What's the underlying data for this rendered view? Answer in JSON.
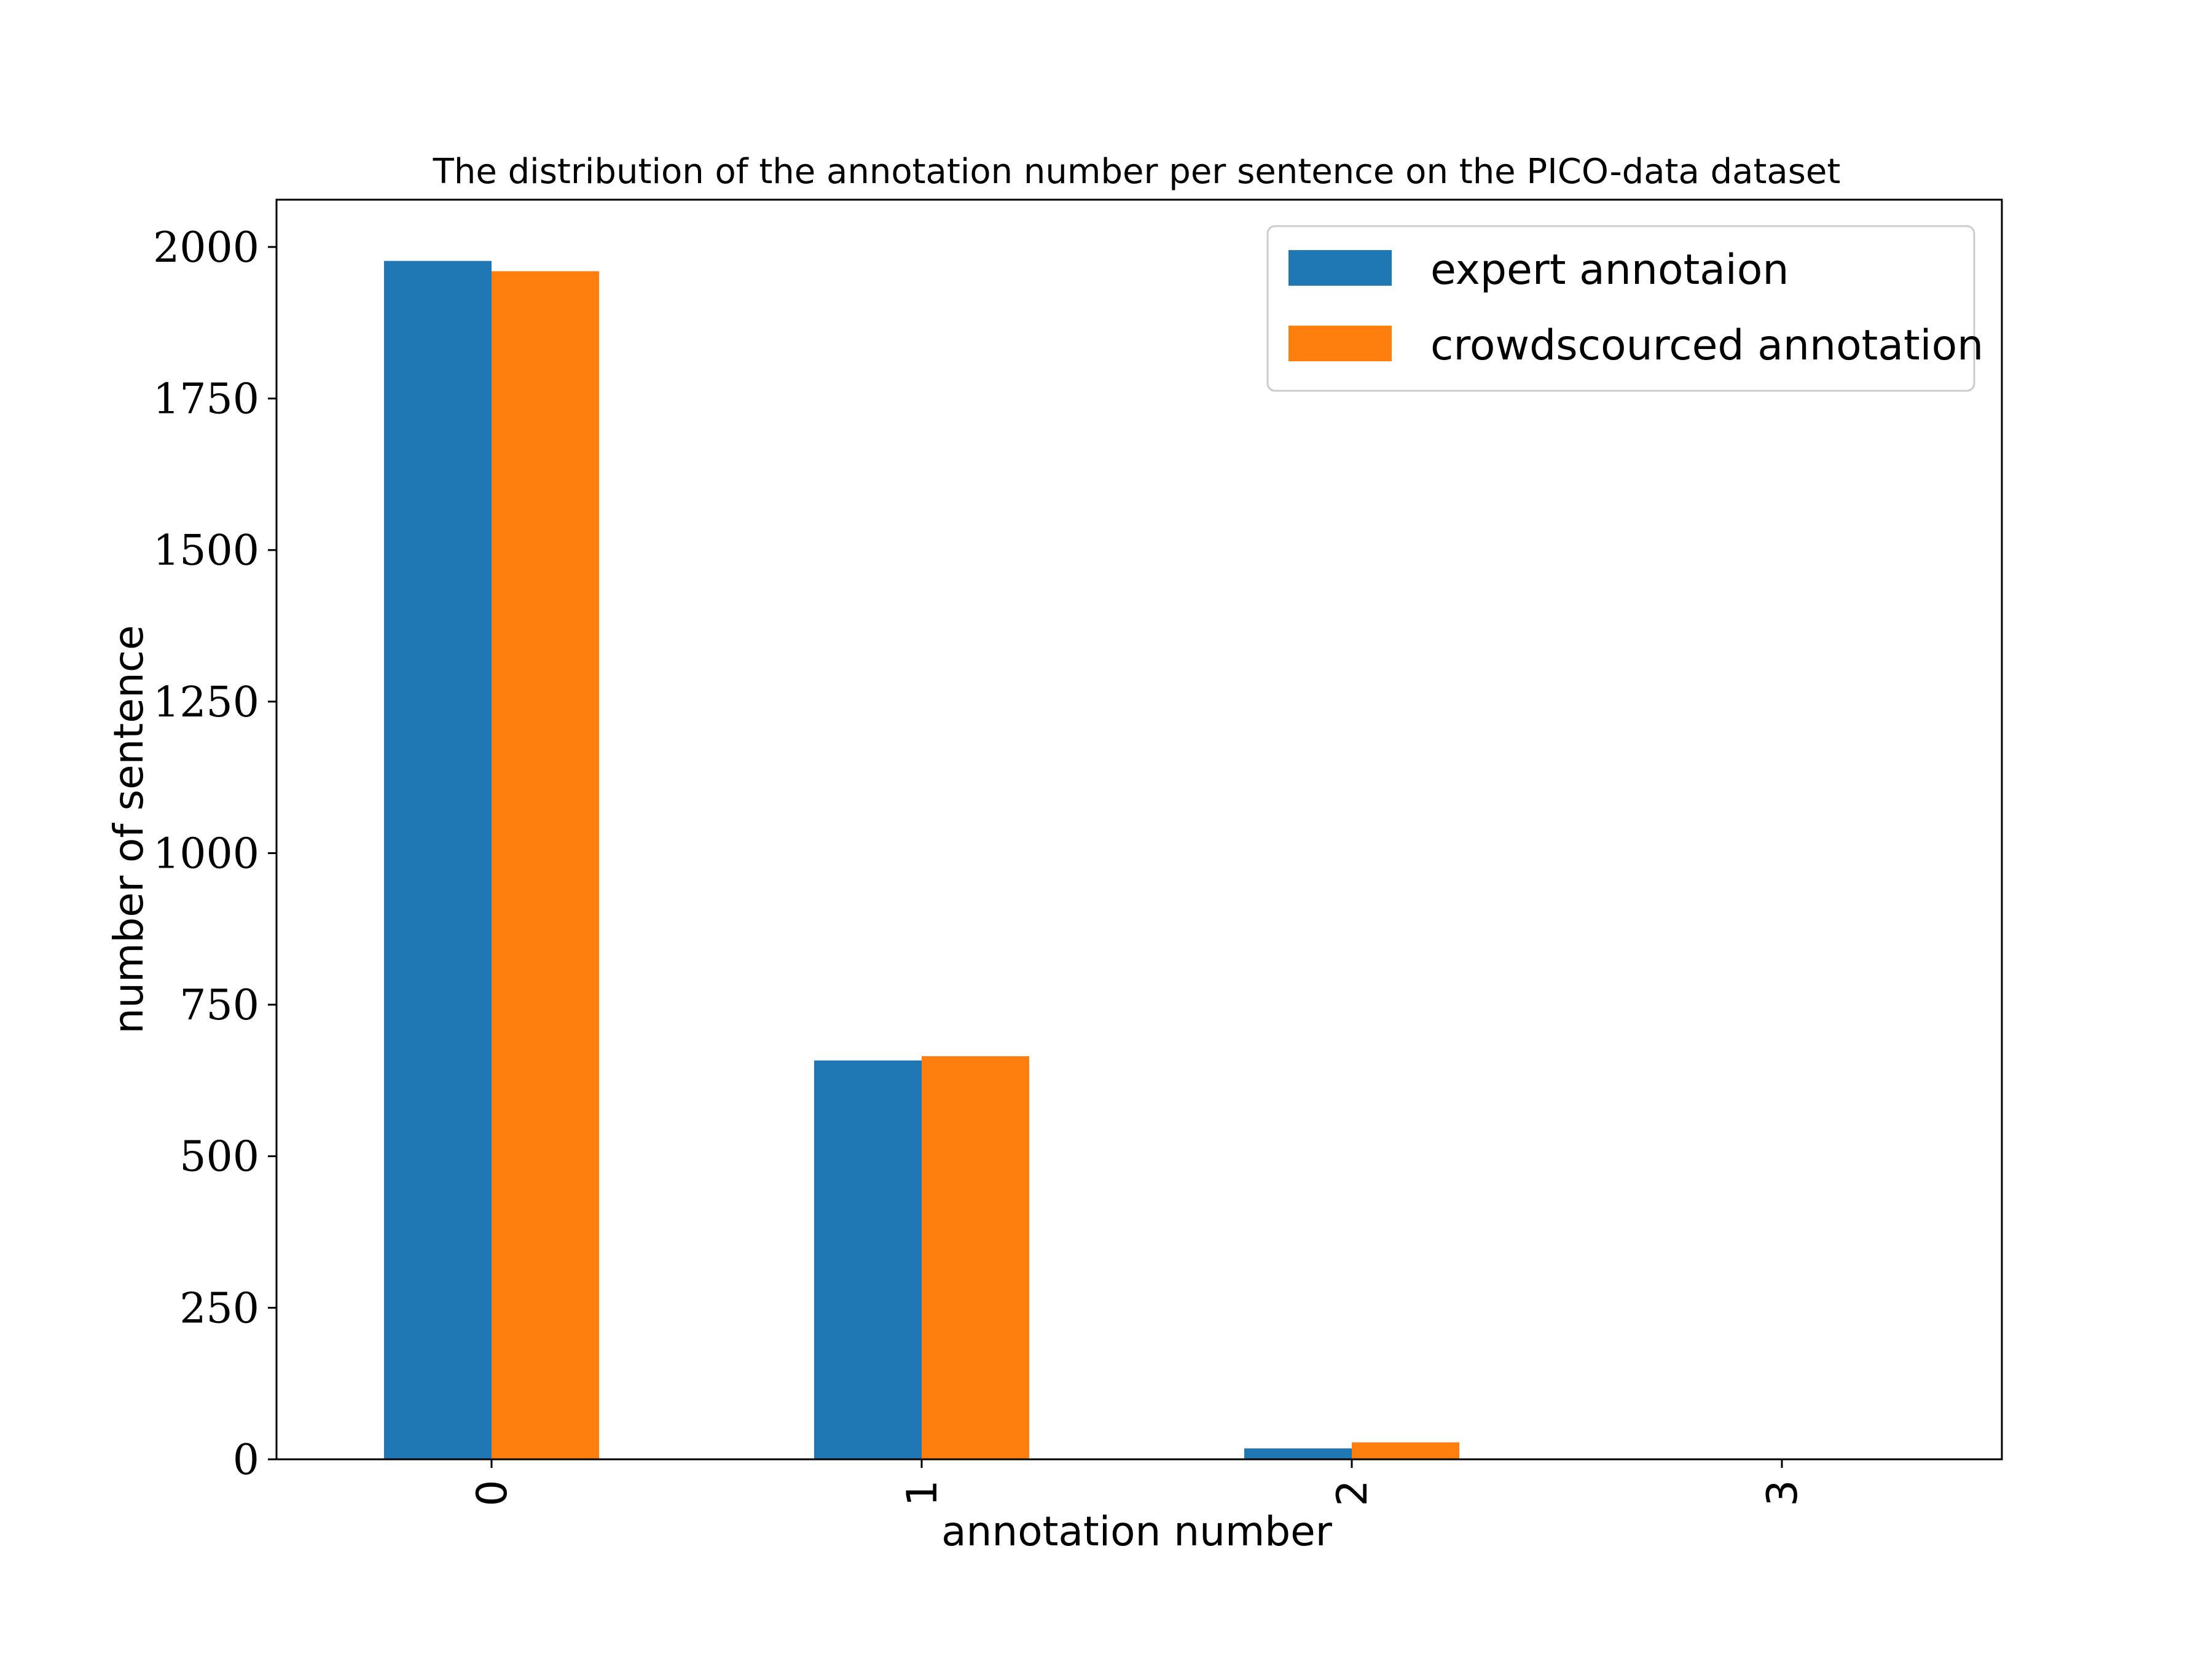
{
  "chart_data": {
    "type": "bar",
    "title": "The distribution of the annotation number per sentence on the PICO-data dataset",
    "xlabel": "annotation number",
    "ylabel": "number of sentence",
    "categories": [
      "0",
      "1",
      "2",
      "3"
    ],
    "series": [
      {
        "name": "expert annotaion",
        "color": "#1f77b4",
        "values": [
          1977,
          658,
          18,
          0
        ]
      },
      {
        "name": "crowdscourced annotation",
        "color": "#ff7f0e",
        "values": [
          1960,
          665,
          28,
          0
        ]
      }
    ],
    "ylim": [
      0,
      2078
    ],
    "yticks": [
      0,
      250,
      500,
      750,
      1000,
      1250,
      1500,
      1750,
      2000
    ],
    "grid": false,
    "legend": "top-right"
  }
}
